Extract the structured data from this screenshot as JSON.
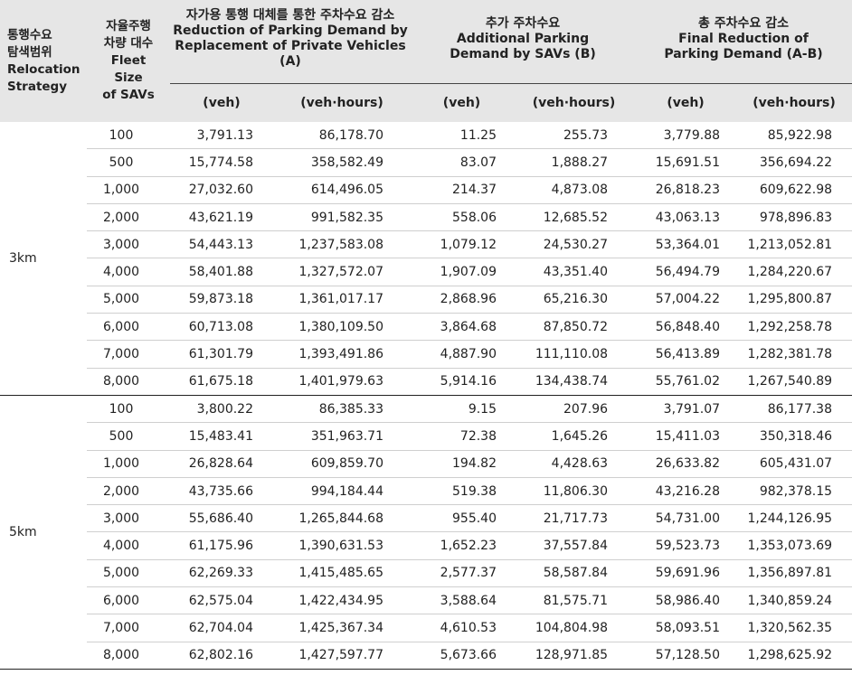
{
  "header": {
    "strategy": [
      "통행수요",
      "탐색범위",
      "Relocation",
      "Strategy"
    ],
    "fleet": [
      "자율주행",
      "차량 대수",
      "Fleet",
      "Size",
      "of SAVs"
    ],
    "group_a": [
      "자가용 통행 대체를 통한 주차수요 감소",
      "Reduction of Parking Demand by",
      "Replacement of Private Vehicles",
      "(A)"
    ],
    "group_b": [
      "추가 주차수요",
      "Additional Parking",
      "Demand by SAVs (B)"
    ],
    "group_c": [
      "총 주차수요 감소",
      "Final Reduction of",
      "Parking Demand (A-B)"
    ],
    "unit_veh": "(veh)",
    "unit_vehhours": "(veh·hours)"
  },
  "groups": [
    {
      "strategy": "3km",
      "rows": [
        [
          "100",
          "3,791.13",
          "86,178.70",
          "11.25",
          "255.73",
          "3,779.88",
          "85,922.98"
        ],
        [
          "500",
          "15,774.58",
          "358,582.49",
          "83.07",
          "1,888.27",
          "15,691.51",
          "356,694.22"
        ],
        [
          "1,000",
          "27,032.60",
          "614,496.05",
          "214.37",
          "4,873.08",
          "26,818.23",
          "609,622.98"
        ],
        [
          "2,000",
          "43,621.19",
          "991,582.35",
          "558.06",
          "12,685.52",
          "43,063.13",
          "978,896.83"
        ],
        [
          "3,000",
          "54,443.13",
          "1,237,583.08",
          "1,079.12",
          "24,530.27",
          "53,364.01",
          "1,213,052.81"
        ],
        [
          "4,000",
          "58,401.88",
          "1,327,572.07",
          "1,907.09",
          "43,351.40",
          "56,494.79",
          "1,284,220.67"
        ],
        [
          "5,000",
          "59,873.18",
          "1,361,017.17",
          "2,868.96",
          "65,216.30",
          "57,004.22",
          "1,295,800.87"
        ],
        [
          "6,000",
          "60,713.08",
          "1,380,109.50",
          "3,864.68",
          "87,850.72",
          "56,848.40",
          "1,292,258.78"
        ],
        [
          "7,000",
          "61,301.79",
          "1,393,491.86",
          "4,887.90",
          "111,110.08",
          "56,413.89",
          "1,282,381.78"
        ],
        [
          "8,000",
          "61,675.18",
          "1,401,979.63",
          "5,914.16",
          "134,438.74",
          "55,761.02",
          "1,267,540.89"
        ]
      ]
    },
    {
      "strategy": "5km",
      "rows": [
        [
          "100",
          "3,800.22",
          "86,385.33",
          "9.15",
          "207.96",
          "3,791.07",
          "86,177.38"
        ],
        [
          "500",
          "15,483.41",
          "351,963.71",
          "72.38",
          "1,645.26",
          "15,411.03",
          "350,318.46"
        ],
        [
          "1,000",
          "26,828.64",
          "609,859.70",
          "194.82",
          "4,428.63",
          "26,633.82",
          "605,431.07"
        ],
        [
          "2,000",
          "43,735.66",
          "994,184.44",
          "519.38",
          "11,806.30",
          "43,216.28",
          "982,378.15"
        ],
        [
          "3,000",
          "55,686.40",
          "1,265,844.68",
          "955.40",
          "21,717.73",
          "54,731.00",
          "1,244,126.95"
        ],
        [
          "4,000",
          "61,175.96",
          "1,390,631.53",
          "1,652.23",
          "37,557.84",
          "59,523.73",
          "1,353,073.69"
        ],
        [
          "5,000",
          "62,269.33",
          "1,415,485.65",
          "2,577.37",
          "58,587.84",
          "59,691.96",
          "1,356,897.81"
        ],
        [
          "6,000",
          "62,575.04",
          "1,422,434.95",
          "3,588.64",
          "81,575.71",
          "58,986.40",
          "1,340,859.24"
        ],
        [
          "7,000",
          "62,704.04",
          "1,425,367.34",
          "4,610.53",
          "104,804.98",
          "58,093.51",
          "1,320,562.35"
        ],
        [
          "8,000",
          "62,802.16",
          "1,427,597.77",
          "5,673.66",
          "128,971.85",
          "57,128.50",
          "1,298,625.92"
        ]
      ]
    }
  ]
}
